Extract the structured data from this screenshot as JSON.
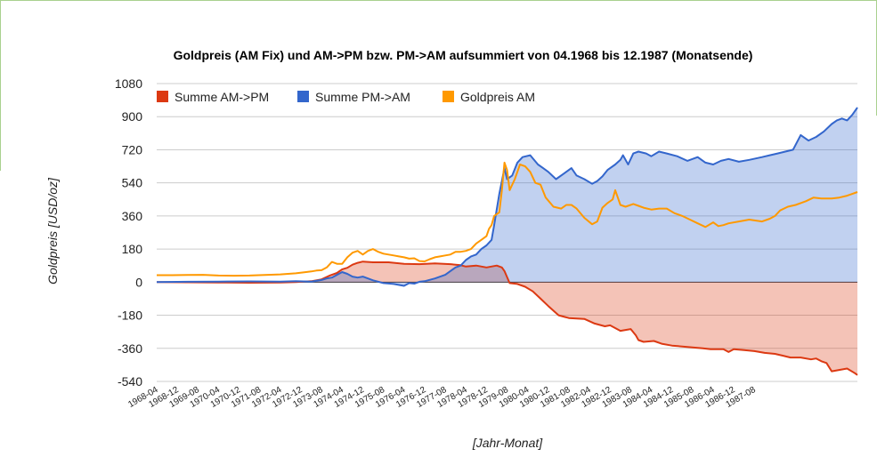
{
  "chart_data": {
    "type": "area",
    "title": "Goldpreis (AM Fix) und AM->PM bzw. PM->AM aufsummiert von 04.1968 bis 12.1987 (Monatsende)",
    "xlabel": "[Jahr-Monat]",
    "ylabel": "Goldpreis [USD/oz]",
    "ylim": [
      -540,
      1080
    ],
    "yticks": [
      1080,
      900,
      720,
      540,
      360,
      180,
      0,
      -180,
      -360,
      -540
    ],
    "ytick_labels": [
      "1080",
      "900",
      "720",
      "540",
      "360",
      "180",
      "0",
      "-180",
      "-360",
      "-540"
    ],
    "xticks": [
      "1968-04",
      "1968-12",
      "1969-08",
      "1970-04",
      "1970-12",
      "1971-08",
      "1972-04",
      "1972-12",
      "1973-08",
      "1974-04",
      "1974-12",
      "1975-08",
      "1976-04",
      "1976-12",
      "1977-08",
      "1978-04",
      "1978-12",
      "1979-08",
      "1980-04",
      "1980-12",
      "1981-08",
      "1982-04",
      "1982-12",
      "1983-08",
      "1984-04",
      "1984-12",
      "1985-08",
      "1986-04",
      "1986-12",
      "1987-08"
    ],
    "x_range": [
      "1968-04",
      "1987-12"
    ],
    "legend_position": "top-left",
    "grid": true,
    "series": [
      {
        "name": "Summe AM->PM",
        "color": "#dc3912",
        "fill": "#f2c0b5",
        "points": [
          [
            0,
            0
          ],
          [
            12,
            -1
          ],
          [
            24,
            -2
          ],
          [
            36,
            -3
          ],
          [
            48,
            -2
          ],
          [
            54,
            0
          ],
          [
            60,
            5
          ],
          [
            64,
            15
          ],
          [
            67,
            35
          ],
          [
            70,
            50
          ],
          [
            72,
            70
          ],
          [
            74,
            78
          ],
          [
            76,
            95
          ],
          [
            78,
            105
          ],
          [
            80,
            112
          ],
          [
            84,
            108
          ],
          [
            90,
            108
          ],
          [
            96,
            100
          ],
          [
            102,
            98
          ],
          [
            108,
            102
          ],
          [
            114,
            98
          ],
          [
            118,
            92
          ],
          [
            120,
            85
          ],
          [
            124,
            90
          ],
          [
            128,
            80
          ],
          [
            132,
            90
          ],
          [
            134,
            80
          ],
          [
            135,
            60
          ],
          [
            137,
            -5
          ],
          [
            140,
            -10
          ],
          [
            143,
            -25
          ],
          [
            146,
            -50
          ],
          [
            149,
            -90
          ],
          [
            152,
            -130
          ],
          [
            156,
            -180
          ],
          [
            160,
            -195
          ],
          [
            166,
            -200
          ],
          [
            170,
            -225
          ],
          [
            174,
            -240
          ],
          [
            176,
            -235
          ],
          [
            178,
            -250
          ],
          [
            180,
            -265
          ],
          [
            182,
            -260
          ],
          [
            184,
            -255
          ],
          [
            186,
            -290
          ],
          [
            187,
            -315
          ],
          [
            189,
            -325
          ],
          [
            193,
            -320
          ],
          [
            196,
            -335
          ],
          [
            200,
            -345
          ],
          [
            204,
            -350
          ],
          [
            208,
            -355
          ],
          [
            212,
            -360
          ],
          [
            215,
            -365
          ],
          [
            220,
            -365
          ],
          [
            222,
            -380
          ],
          [
            224,
            -365
          ],
          [
            228,
            -370
          ],
          [
            232,
            -375
          ],
          [
            236,
            -385
          ],
          [
            240,
            -390
          ],
          [
            243,
            -400
          ],
          [
            246,
            -410
          ],
          [
            250,
            -410
          ],
          [
            254,
            -420
          ],
          [
            256,
            -415
          ],
          [
            258,
            -430
          ],
          [
            260,
            -440
          ],
          [
            262,
            -485
          ],
          [
            268,
            -470
          ],
          [
            271,
            -495
          ],
          [
            272,
            -505
          ]
        ]
      },
      {
        "name": "Summe PM->AM",
        "color": "#3366cc",
        "fill": "#c5d0ee",
        "points": [
          [
            0,
            0
          ],
          [
            12,
            2
          ],
          [
            24,
            3
          ],
          [
            36,
            4
          ],
          [
            48,
            3
          ],
          [
            54,
            5
          ],
          [
            60,
            3
          ],
          [
            64,
            12
          ],
          [
            66,
            20
          ],
          [
            68,
            25
          ],
          [
            70,
            40
          ],
          [
            72,
            55
          ],
          [
            74,
            45
          ],
          [
            76,
            30
          ],
          [
            78,
            25
          ],
          [
            80,
            30
          ],
          [
            82,
            20
          ],
          [
            84,
            10
          ],
          [
            88,
            -5
          ],
          [
            92,
            -10
          ],
          [
            96,
            -20
          ],
          [
            98,
            -5
          ],
          [
            100,
            -8
          ],
          [
            102,
            2
          ],
          [
            104,
            5
          ],
          [
            108,
            20
          ],
          [
            112,
            40
          ],
          [
            114,
            60
          ],
          [
            116,
            80
          ],
          [
            118,
            90
          ],
          [
            120,
            120
          ],
          [
            122,
            140
          ],
          [
            124,
            150
          ],
          [
            126,
            180
          ],
          [
            128,
            200
          ],
          [
            130,
            230
          ],
          [
            131,
            310
          ],
          [
            133,
            480
          ],
          [
            135,
            620
          ],
          [
            136,
            560
          ],
          [
            138,
            580
          ],
          [
            140,
            650
          ],
          [
            142,
            680
          ],
          [
            145,
            690
          ],
          [
            148,
            640
          ],
          [
            150,
            620
          ],
          [
            152,
            600
          ],
          [
            155,
            560
          ],
          [
            158,
            590
          ],
          [
            161,
            620
          ],
          [
            163,
            580
          ],
          [
            166,
            560
          ],
          [
            169,
            535
          ],
          [
            171,
            550
          ],
          [
            173,
            575
          ],
          [
            175,
            610
          ],
          [
            178,
            640
          ],
          [
            180,
            665
          ],
          [
            181,
            690
          ],
          [
            183,
            640
          ],
          [
            185,
            700
          ],
          [
            187,
            710
          ],
          [
            190,
            700
          ],
          [
            192,
            685
          ],
          [
            195,
            710
          ],
          [
            198,
            700
          ],
          [
            202,
            685
          ],
          [
            206,
            660
          ],
          [
            210,
            680
          ],
          [
            213,
            650
          ],
          [
            216,
            640
          ],
          [
            219,
            660
          ],
          [
            222,
            670
          ],
          [
            226,
            655
          ],
          [
            230,
            665
          ],
          [
            235,
            680
          ],
          [
            238,
            690
          ],
          [
            241,
            700
          ],
          [
            244,
            710
          ],
          [
            247,
            720
          ],
          [
            250,
            800
          ],
          [
            253,
            770
          ],
          [
            256,
            790
          ],
          [
            259,
            820
          ],
          [
            262,
            860
          ],
          [
            264,
            880
          ],
          [
            266,
            890
          ],
          [
            268,
            880
          ],
          [
            270,
            910
          ],
          [
            272,
            950
          ]
        ]
      },
      {
        "name": "Goldpreis AM",
        "color": "#ff9900",
        "fill": "none",
        "points": [
          [
            0,
            38
          ],
          [
            6,
            38
          ],
          [
            12,
            39
          ],
          [
            18,
            40
          ],
          [
            24,
            36
          ],
          [
            30,
            35
          ],
          [
            36,
            36
          ],
          [
            42,
            39
          ],
          [
            48,
            42
          ],
          [
            54,
            48
          ],
          [
            58,
            55
          ],
          [
            60,
            58
          ],
          [
            62,
            63
          ],
          [
            64,
            65
          ],
          [
            66,
            80
          ],
          [
            68,
            110
          ],
          [
            70,
            100
          ],
          [
            72,
            100
          ],
          [
            74,
            135
          ],
          [
            76,
            160
          ],
          [
            78,
            170
          ],
          [
            80,
            150
          ],
          [
            82,
            170
          ],
          [
            84,
            180
          ],
          [
            86,
            165
          ],
          [
            88,
            155
          ],
          [
            90,
            150
          ],
          [
            92,
            145
          ],
          [
            94,
            140
          ],
          [
            96,
            135
          ],
          [
            98,
            128
          ],
          [
            100,
            130
          ],
          [
            102,
            115
          ],
          [
            104,
            113
          ],
          [
            106,
            125
          ],
          [
            108,
            135
          ],
          [
            110,
            140
          ],
          [
            112,
            145
          ],
          [
            114,
            150
          ],
          [
            116,
            165
          ],
          [
            118,
            165
          ],
          [
            120,
            170
          ],
          [
            122,
            180
          ],
          [
            124,
            210
          ],
          [
            126,
            230
          ],
          [
            128,
            250
          ],
          [
            129,
            290
          ],
          [
            130,
            310
          ],
          [
            131,
            360
          ],
          [
            133,
            380
          ],
          [
            134,
            500
          ],
          [
            135,
            650
          ],
          [
            136,
            610
          ],
          [
            137,
            500
          ],
          [
            139,
            560
          ],
          [
            141,
            640
          ],
          [
            143,
            630
          ],
          [
            145,
            600
          ],
          [
            147,
            540
          ],
          [
            149,
            530
          ],
          [
            151,
            460
          ],
          [
            154,
            410
          ],
          [
            157,
            400
          ],
          [
            159,
            420
          ],
          [
            161,
            420
          ],
          [
            163,
            400
          ],
          [
            166,
            350
          ],
          [
            169,
            315
          ],
          [
            171,
            330
          ],
          [
            173,
            405
          ],
          [
            175,
            430
          ],
          [
            177,
            450
          ],
          [
            178,
            500
          ],
          [
            180,
            420
          ],
          [
            182,
            410
          ],
          [
            185,
            425
          ],
          [
            187,
            415
          ],
          [
            189,
            405
          ],
          [
            192,
            395
          ],
          [
            195,
            400
          ],
          [
            198,
            400
          ],
          [
            201,
            375
          ],
          [
            204,
            360
          ],
          [
            207,
            340
          ],
          [
            210,
            320
          ],
          [
            213,
            300
          ],
          [
            216,
            325
          ],
          [
            218,
            305
          ],
          [
            220,
            310
          ],
          [
            222,
            320
          ],
          [
            226,
            330
          ],
          [
            230,
            340
          ],
          [
            235,
            330
          ],
          [
            238,
            345
          ],
          [
            240,
            360
          ],
          [
            242,
            390
          ],
          [
            245,
            410
          ],
          [
            248,
            420
          ],
          [
            250,
            430
          ],
          [
            252,
            440
          ],
          [
            255,
            460
          ],
          [
            258,
            455
          ],
          [
            262,
            455
          ],
          [
            265,
            460
          ],
          [
            268,
            470
          ],
          [
            270,
            480
          ],
          [
            272,
            490
          ]
        ]
      }
    ]
  }
}
